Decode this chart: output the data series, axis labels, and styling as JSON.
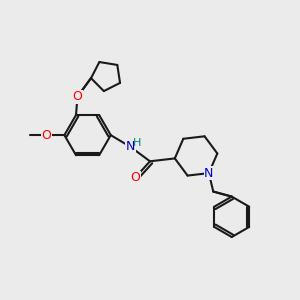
{
  "background_color": "#ebebeb",
  "bond_color": "#1a1a1a",
  "bond_width": 1.5,
  "atom_colors": {
    "O": "#ff0000",
    "N": "#0000cc",
    "H": "#008080",
    "C": "#1a1a1a"
  },
  "fig_size": [
    3.0,
    3.0
  ],
  "dpi": 100
}
